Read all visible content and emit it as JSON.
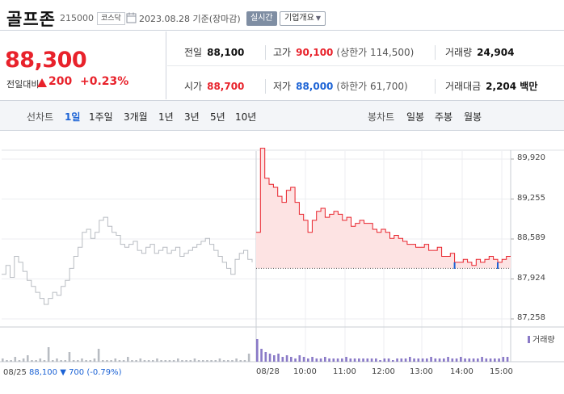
{
  "header": {
    "stock_name": "골프존",
    "stock_code": "215000",
    "market": "코스닥",
    "as_of": "2023.08.28 기준(장마감)",
    "realtime_label": "실시간",
    "overview_label": "기업개요"
  },
  "price": {
    "current": "88,300",
    "change_label": "전일대비",
    "change_amount": "200",
    "change_percent": "+0.23%",
    "direction": "up"
  },
  "stats": {
    "prev_close": {
      "label": "전일",
      "value": "88,100"
    },
    "high": {
      "label": "고가",
      "value": "90,100",
      "sub": "(상한가 114,500)"
    },
    "volume": {
      "label": "거래량",
      "value": "24,904"
    },
    "open": {
      "label": "시가",
      "value": "88,700"
    },
    "low": {
      "label": "저가",
      "value": "88,000",
      "sub": "(하한가 61,700)"
    },
    "trade_value": {
      "label": "거래대금",
      "value": "2,204 백만"
    }
  },
  "period_bar": {
    "line_label": "선차트",
    "line_periods": [
      "1일",
      "1주일",
      "3개월",
      "1년",
      "3년",
      "5년",
      "10년"
    ],
    "active_period": "1일",
    "candle_label": "봉차트",
    "candle_periods": [
      "일봉",
      "주봉",
      "월봉"
    ]
  },
  "colors": {
    "up": "#e8222b",
    "down": "#1c63d5",
    "prev_day_line": "#b8bcc2",
    "fill": "#fde3e3",
    "volume": "#8a7ac7"
  },
  "chart_data": {
    "type": "line",
    "y_ticks": [
      "89,920",
      "89,255",
      "88,589",
      "87,924",
      "87,258"
    ],
    "ylim": [
      87258,
      89920
    ],
    "reference_price": 88100,
    "x_ticks": [
      "08/25",
      "08/28",
      "10:00",
      "11:00",
      "12:00",
      "13:00",
      "14:00",
      "15:00"
    ],
    "volume_legend": "거래량",
    "prev_day_info": {
      "date": "08/25",
      "close": "88,100",
      "change": "▼ 700",
      "pct": "(-0.79%)"
    },
    "series": [
      {
        "name": "08/25",
        "values": [
          88000,
          88150,
          87950,
          88300,
          88200,
          88050,
          87900,
          87800,
          87700,
          87600,
          87500,
          87600,
          87700,
          87650,
          87800,
          87900,
          88100,
          88300,
          88450,
          88700,
          88750,
          88600,
          88700,
          88900,
          88950,
          88800,
          88700,
          88650,
          88500,
          88450,
          88500,
          88550,
          88400,
          88350,
          88450,
          88500,
          88350,
          88400,
          88450,
          88350,
          88400,
          88450,
          88300,
          88350,
          88400,
          88450,
          88500,
          88550,
          88600,
          88500,
          88400,
          88300,
          88200,
          88100,
          88000,
          88250,
          88350,
          88400,
          88250,
          88200
        ]
      },
      {
        "name": "08/28",
        "values": [
          88700,
          90100,
          89600,
          89500,
          89450,
          89300,
          89200,
          89400,
          89450,
          89200,
          89000,
          88900,
          88700,
          88900,
          89050,
          89100,
          88950,
          89000,
          89050,
          89000,
          88900,
          88950,
          88800,
          88850,
          88900,
          88850,
          88850,
          88750,
          88700,
          88750,
          88700,
          88600,
          88650,
          88600,
          88550,
          88500,
          88500,
          88450,
          88450,
          88500,
          88400,
          88400,
          88450,
          88300,
          88300,
          88350,
          88200,
          88200,
          88250,
          88200,
          88150,
          88250,
          88200,
          88250,
          88300,
          88250,
          88200,
          88250,
          88300,
          88300
        ]
      }
    ],
    "volume": {
      "prev_day": [
        2,
        1,
        1,
        3,
        1,
        2,
        4,
        1,
        1,
        2,
        1,
        9,
        1,
        2,
        1,
        1,
        6,
        1,
        1,
        2,
        1,
        1,
        2,
        8,
        1,
        1,
        1,
        2,
        1,
        1,
        3,
        1,
        1,
        2,
        1,
        1,
        1,
        2,
        1,
        1,
        1,
        1,
        2,
        1,
        1,
        1,
        2,
        1,
        1,
        1,
        1,
        1,
        2,
        1,
        1,
        1,
        2,
        1,
        1,
        5
      ],
      "today": [
        14,
        8,
        6,
        5,
        4,
        5,
        3,
        4,
        3,
        2,
        4,
        3,
        2,
        3,
        2,
        2,
        3,
        2,
        2,
        2,
        2,
        3,
        2,
        2,
        2,
        2,
        2,
        2,
        2,
        1,
        2,
        2,
        1,
        2,
        2,
        2,
        3,
        2,
        2,
        2,
        2,
        3,
        2,
        2,
        2,
        3,
        2,
        2,
        3,
        2,
        2,
        2,
        2,
        3,
        2,
        2,
        2,
        2,
        3,
        3
      ]
    }
  }
}
